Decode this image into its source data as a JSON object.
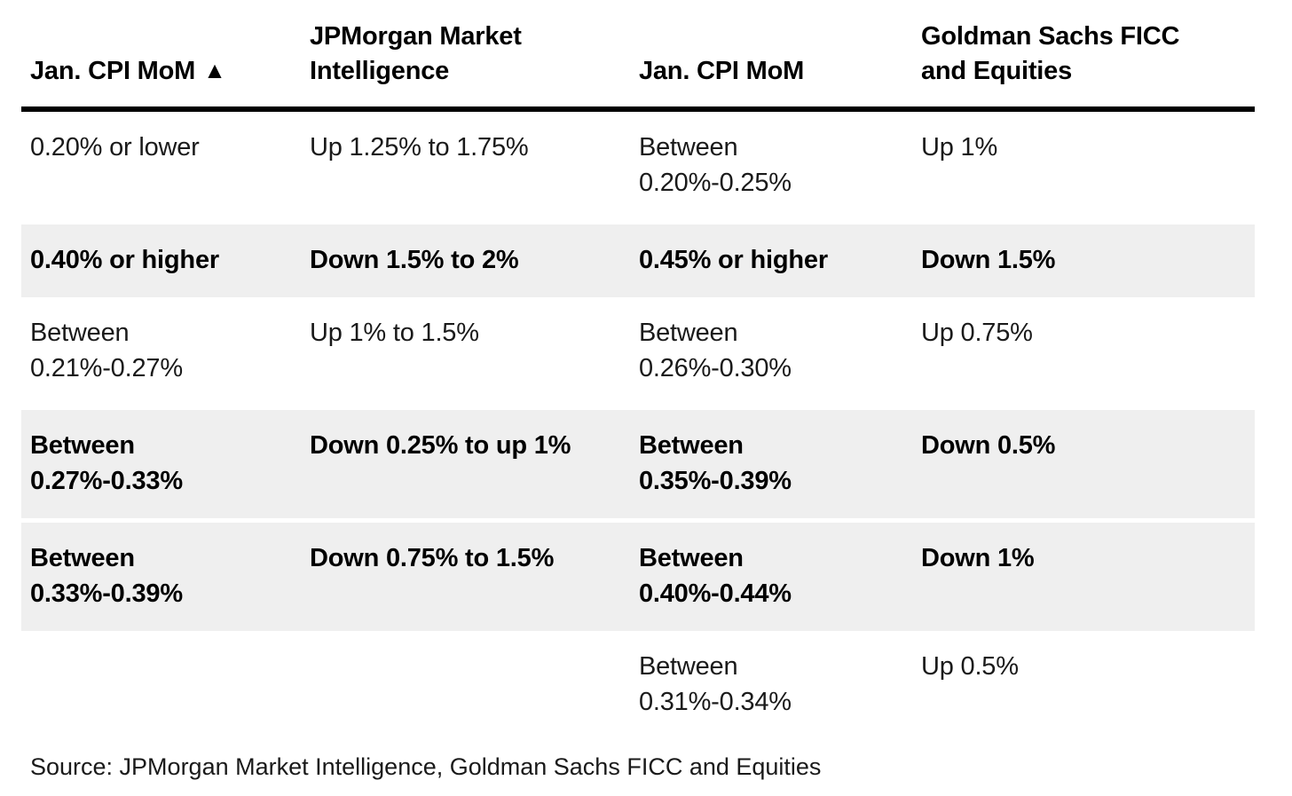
{
  "chart_data": {
    "type": "table",
    "title": "",
    "columns": [
      "Jan. CPI MoM ▲",
      "JPMorgan Market Intelligence",
      "Jan. CPI MoM",
      "Goldman Sachs FICC and Equities"
    ],
    "rows": [
      [
        "0.20% or lower",
        "Up 1.25% to 1.75%",
        "Between 0.20%-0.25%",
        "Up 1%"
      ],
      [
        "0.40% or higher",
        "Down 1.5% to 2%",
        "0.45% or higher",
        "Down 1.5%"
      ],
      [
        "Between 0.21%-0.27%",
        "Up 1% to 1.5%",
        "Between 0.26%-0.30%",
        "Up 0.75%"
      ],
      [
        "Between 0.27%-0.33%",
        "Down 0.25% to up 1%",
        "Between 0.35%-0.39%",
        "Down 0.5%"
      ],
      [
        "Between 0.33%-0.39%",
        "Down 0.75% to 1.5%",
        "Between 0.40%-0.44%",
        "Down 1%"
      ],
      [
        "",
        "",
        "Between 0.31%-0.34%",
        "Up 0.5%"
      ]
    ],
    "highlighted_rows": [
      1,
      3,
      4
    ],
    "source": "Source: JPMorgan Market Intelligence, Goldman Sachs FICC and Equities"
  },
  "display": {
    "header": {
      "col1_label": "Jan. CPI MoM",
      "col1_icon": "▲",
      "col2_label": "JPMorgan Market\nIntelligence",
      "col3_label": "Jan. CPI MoM",
      "col4_label": "Goldman Sachs FICC\nand Equities"
    },
    "rows": [
      {
        "cells": [
          "0.20% or lower",
          "Up 1.25% to 1.75%",
          "Between\n0.20%-0.25%",
          "Up 1%"
        ]
      },
      {
        "cells": [
          "0.40% or higher",
          "Down 1.5% to 2%",
          "0.45% or higher",
          "Down 1.5%"
        ]
      },
      {
        "cells": [
          "Between\n0.21%-0.27%",
          "Up 1% to 1.5%",
          "Between\n0.26%-0.30%",
          "Up 0.75%"
        ]
      },
      {
        "cells": [
          "Between\n0.27%-0.33%",
          "Down 0.25% to up 1%",
          "Between\n0.35%-0.39%",
          "Down 0.5%"
        ]
      },
      {
        "cells": [
          "Between\n0.33%-0.39%",
          "Down 0.75% to 1.5%",
          "Between\n0.40%-0.44%",
          "Down 1%"
        ]
      },
      {
        "cells": [
          "",
          "",
          "Between\n0.31%-0.34%",
          "Up 0.5%"
        ]
      }
    ],
    "source_note": "Source: JPMorgan Market Intelligence, Goldman Sachs FICC and Equities"
  },
  "colors": {
    "background": "#ffffff",
    "shaded_row": "#efefef",
    "header_rule": "#000000",
    "text": "#1a1a1a"
  }
}
